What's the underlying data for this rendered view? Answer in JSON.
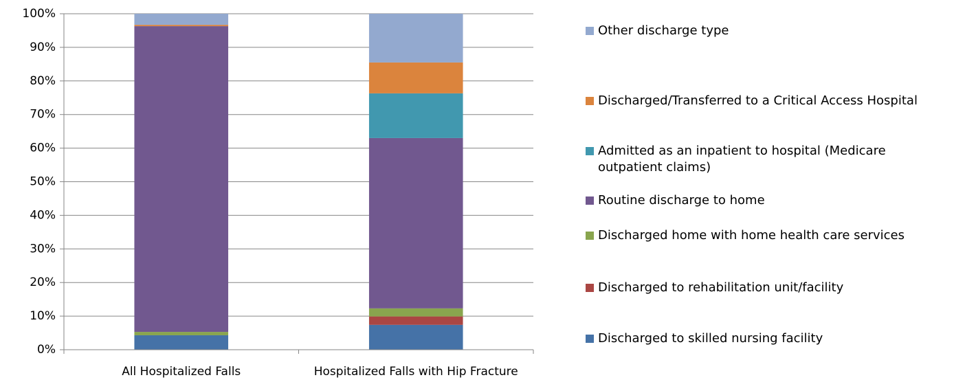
{
  "chart_data": {
    "type": "stacked_bar",
    "categories": [
      "All Hospitalized Falls",
      "Hospitalized Falls with Hip Fracture"
    ],
    "series": [
      {
        "name": "Discharged to skilled nursing facility",
        "color": "#4572a7",
        "values": [
          4.3,
          7.4
        ]
      },
      {
        "name": "Discharged to rehabilitation unit/facility",
        "color": "#aa4643",
        "values": [
          0,
          2.5
        ]
      },
      {
        "name": "Discharged home with home health care services",
        "color": "#89a54e",
        "values": [
          1.0,
          2.4
        ]
      },
      {
        "name": "Routine discharge to home",
        "color": "#71588f",
        "values": [
          91.0,
          50.7
        ]
      },
      {
        "name": "Admitted as an inpatient to hospital (Medicare outpatient claims)",
        "color": "#4198af",
        "values": [
          0,
          13.3
        ]
      },
      {
        "name": "Discharged/Transferred to a Critical Access Hospital",
        "color": "#db843d",
        "values": [
          0.4,
          9.2
        ]
      },
      {
        "name": "Other discharge type",
        "color": "#93a9cf",
        "values": [
          3.3,
          14.5
        ]
      }
    ],
    "ylim": [
      0,
      100
    ],
    "yticks": [
      {
        "value": 0,
        "label": "0%"
      },
      {
        "value": 10,
        "label": "10%"
      },
      {
        "value": 20,
        "label": "20%"
      },
      {
        "value": 30,
        "label": "30%"
      },
      {
        "value": 40,
        "label": "40%"
      },
      {
        "value": 50,
        "label": "50%"
      },
      {
        "value": 60,
        "label": "60%"
      },
      {
        "value": 70,
        "label": "70%"
      },
      {
        "value": 80,
        "label": "80%"
      },
      {
        "value": 90,
        "label": "90%"
      },
      {
        "value": 100,
        "label": "100%"
      }
    ],
    "grid": true
  }
}
